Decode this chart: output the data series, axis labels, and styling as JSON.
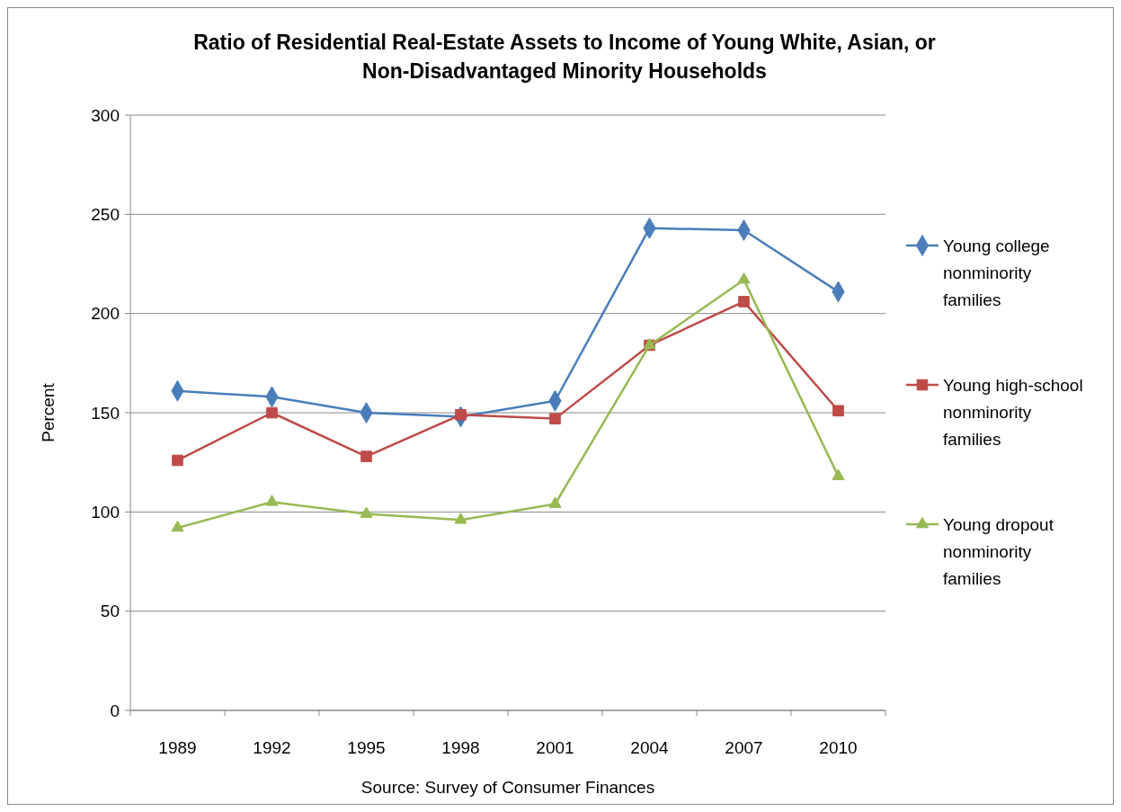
{
  "chart_data": {
    "type": "line",
    "title": "Ratio of Residential Real-Estate Assets to Income of Young White, Asian, or Non-Disadvantaged Minority Households",
    "ylabel": "Percent",
    "annotations": [
      "Source:  Survey of Consumer Finances"
    ],
    "categories": [
      "1989",
      "1992",
      "1995",
      "1998",
      "2001",
      "2004",
      "2007",
      "2010"
    ],
    "ylim": [
      0,
      300
    ],
    "yticks": [
      0,
      50,
      100,
      150,
      200,
      250,
      300
    ],
    "grid": "y",
    "legend": "right",
    "series": [
      {
        "name": "Young college nonminority families",
        "color": "#4a7ebb",
        "marker": "diamond",
        "values": [
          161,
          158,
          150,
          148,
          156,
          243,
          242,
          211
        ]
      },
      {
        "name": "Young high-school nonminority families",
        "color": "#be4b48",
        "marker": "square",
        "values": [
          126,
          150,
          128,
          149,
          147,
          184,
          206,
          151
        ]
      },
      {
        "name": "Young dropout nonminority families",
        "color": "#98b954",
        "marker": "triangle",
        "values": [
          92,
          105,
          99,
          96,
          104,
          184,
          217,
          118
        ]
      }
    ]
  }
}
